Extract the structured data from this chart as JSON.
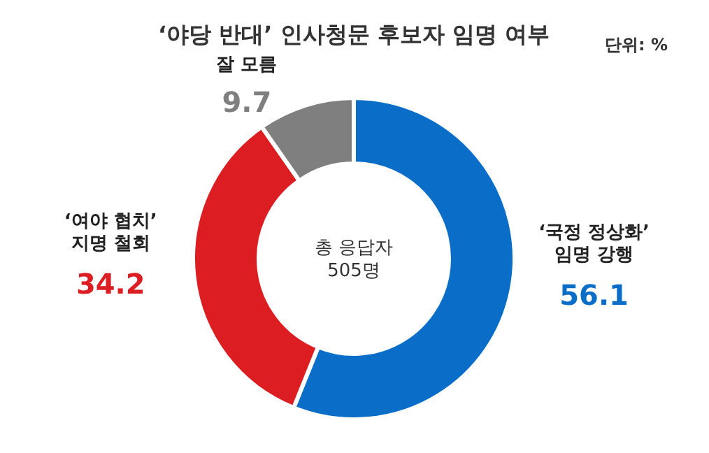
{
  "chart_data": {
    "type": "donut",
    "title": "‘야당 반대’ 인사청문 후보자 임명 여부",
    "subtitle": "단위: %",
    "categories": [
      "‘국정 정상화’\n임명 강행",
      "‘여야 협치’\n지명 철회",
      "잘 모름"
    ],
    "values": [
      56.1,
      34.2,
      9.7
    ],
    "colors": [
      "#0a6ec8",
      "#dc1e23",
      "#7f7f7f"
    ],
    "data_labels": true,
    "annotations": [
      "총 응답자\n505명"
    ]
  }
}
